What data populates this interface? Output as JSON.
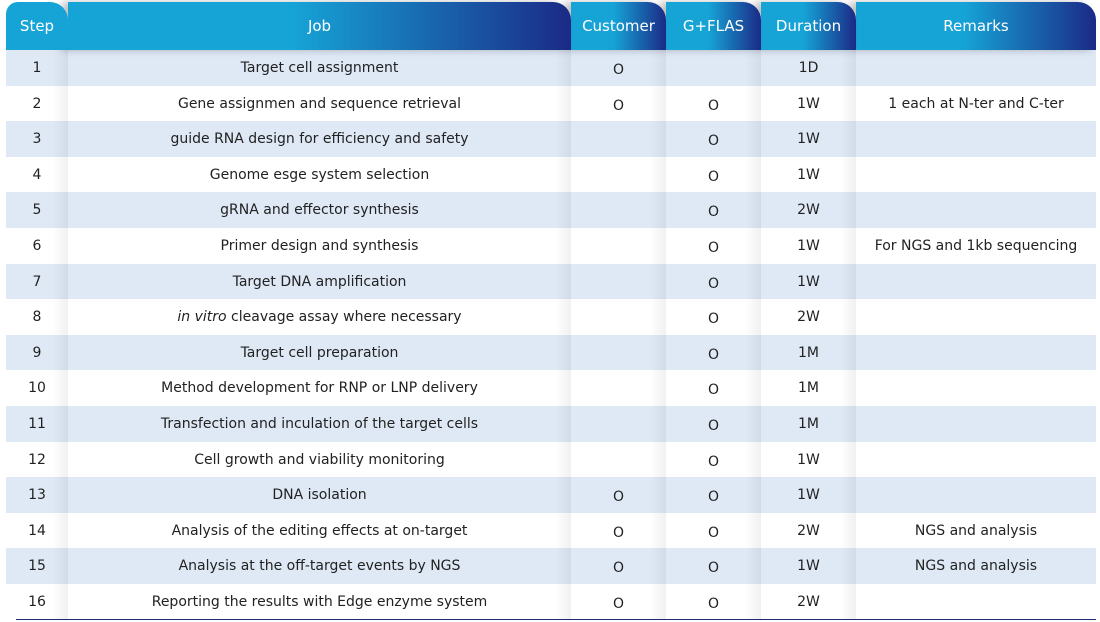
{
  "table": {
    "headers": [
      "Step",
      "Job",
      "Customer",
      "G+FLAS",
      "Duration",
      "Remarks"
    ],
    "rows": [
      {
        "step": "1",
        "job": "Target cell assignment",
        "customer": "O",
        "gflas": "",
        "duration": "1D",
        "remarks": ""
      },
      {
        "step": "2",
        "job": "Gene assignmen and sequence retrieval",
        "customer": "O",
        "gflas": "O",
        "duration": "1W",
        "remarks": "1 each at N-ter and C-ter"
      },
      {
        "step": "3",
        "job": "guide RNA design for efficiency and safety",
        "customer": "",
        "gflas": "O",
        "duration": "1W",
        "remarks": ""
      },
      {
        "step": "4",
        "job": "Genome esge system selection",
        "customer": "",
        "gflas": "O",
        "duration": "1W",
        "remarks": ""
      },
      {
        "step": "5",
        "job": "gRNA and effector synthesis",
        "customer": "",
        "gflas": "O",
        "duration": "2W",
        "remarks": ""
      },
      {
        "step": "6",
        "job": "Primer design and synthesis",
        "customer": "",
        "gflas": "O",
        "duration": "1W",
        "remarks": "For NGS and 1kb sequencing"
      },
      {
        "step": "7",
        "job": "Target DNA amplification",
        "customer": "",
        "gflas": "O",
        "duration": "1W",
        "remarks": ""
      },
      {
        "step": "8",
        "job_italic": "in vitro",
        "job": " cleavage assay where necessary",
        "customer": "",
        "gflas": "O",
        "duration": "2W",
        "remarks": ""
      },
      {
        "step": "9",
        "job": "Target cell preparation",
        "customer": "",
        "gflas": "O",
        "duration": "1M",
        "remarks": ""
      },
      {
        "step": "10",
        "job": "Method development for RNP or LNP delivery",
        "customer": "",
        "gflas": "O",
        "duration": "1M",
        "remarks": ""
      },
      {
        "step": "11",
        "job": "Transfection and inculation of the target cells",
        "customer": "",
        "gflas": "O",
        "duration": "1M",
        "remarks": ""
      },
      {
        "step": "12",
        "job": "Cell growth and viability monitoring",
        "customer": "",
        "gflas": "O",
        "duration": "1W",
        "remarks": ""
      },
      {
        "step": "13",
        "job": "DNA isolation",
        "customer": "O",
        "gflas": "O",
        "duration": "1W",
        "remarks": ""
      },
      {
        "step": "14",
        "job": "Analysis of the editing effects at on-target",
        "customer": "O",
        "gflas": "O",
        "duration": "2W",
        "remarks": "NGS and analysis"
      },
      {
        "step": "15",
        "job": "Analysis at the off-target events by NGS",
        "customer": "O",
        "gflas": "O",
        "duration": "1W",
        "remarks": "NGS and analysis"
      },
      {
        "step": "16",
        "job": "Reporting the results with Edge enzyme system",
        "customer": "O",
        "gflas": "O",
        "duration": "2W",
        "remarks": ""
      }
    ]
  },
  "colors": {
    "header_light": "#16a3d6",
    "header_dark": "#1b2a86",
    "row_alt": "#dfe9f6",
    "text": "#222222"
  }
}
